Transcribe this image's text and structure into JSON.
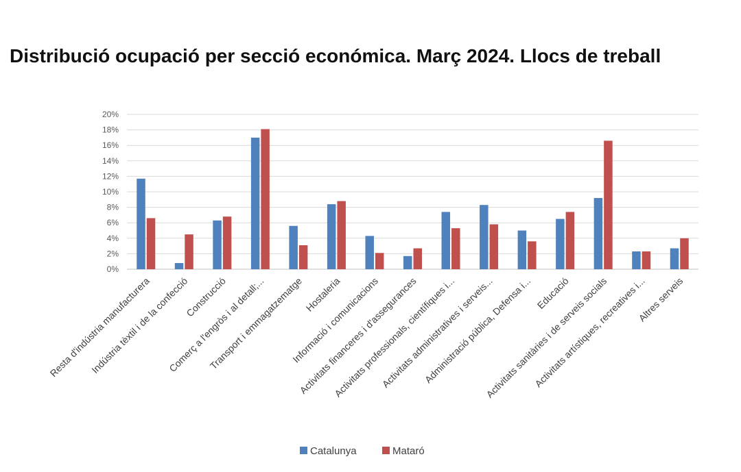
{
  "page_title": "Distribució ocupació per secció económica. Març 2024. Llocs de treball",
  "chart_data": {
    "type": "bar",
    "title": "Distribució ocupació per secció económica. Març 2024. Llocs de treball",
    "xlabel": "",
    "ylabel": "",
    "ylim": [
      0,
      20
    ],
    "y_ticks": [
      0,
      2,
      4,
      6,
      8,
      10,
      12,
      14,
      16,
      18,
      20
    ],
    "y_tick_labels": [
      "0%",
      "2%",
      "4%",
      "6%",
      "8%",
      "10%",
      "12%",
      "14%",
      "16%",
      "18%",
      "20%"
    ],
    "grid": true,
    "legend_position": "bottom-center",
    "categories": [
      "Resta d'indústria manufacturera",
      "Indústria tèxtil i de la confecció",
      "Construcció",
      "Comerç a l'engròs i al detall;...",
      "Transport i emmagatzematge",
      "Hostaleria",
      "Informació i comunicacions",
      "Activitats financeres i d'assegurances",
      "Activitats professionals, científiques i...",
      "Activitats administratives i serveis...",
      "Administració pública, Defensa i...",
      "Educació",
      "Activitats sanitàries i de serveis socials",
      "Activitats artístiques, recreatives i...",
      "Altres serveis"
    ],
    "series": [
      {
        "name": "Catalunya",
        "color": "#4f81bd",
        "values": [
          11.7,
          0.8,
          6.3,
          17.0,
          5.6,
          8.4,
          4.3,
          1.7,
          7.4,
          8.3,
          5.0,
          6.5,
          9.2,
          2.3,
          2.7
        ]
      },
      {
        "name": "Mataró",
        "color": "#c0504d",
        "values": [
          6.6,
          4.5,
          6.8,
          18.1,
          3.1,
          8.8,
          2.1,
          2.7,
          5.3,
          5.8,
          3.6,
          7.4,
          16.6,
          2.3,
          4.0
        ]
      }
    ]
  }
}
